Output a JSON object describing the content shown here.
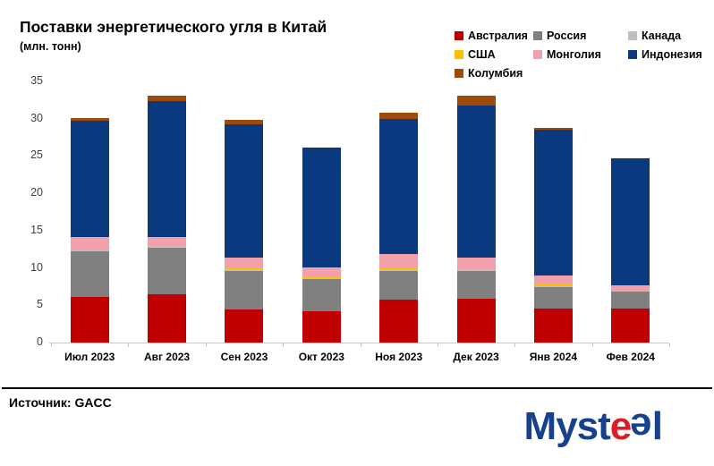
{
  "header": {
    "title": "Поставки энергетического угля в Китай",
    "subtitle": "(млн. тонн)"
  },
  "footer": {
    "source": "Источник: GACC",
    "logo": {
      "prefix": "Myst",
      "e1": "e",
      "e2": "e",
      "suffix": "l"
    }
  },
  "chart_data": {
    "type": "bar",
    "stacked": true,
    "title": "Поставки энергетического угля в Китай",
    "unit_label": "млн. тонн",
    "categories": [
      "Июл 2023",
      "Авг 2023",
      "Сен 2023",
      "Окт 2023",
      "Ноя 2023",
      "Дек 2023",
      "Янв 2024",
      "Фев 2024"
    ],
    "series": [
      {
        "name": "Австралия",
        "color": "#c00000",
        "values": [
          6.1,
          6.5,
          4.4,
          4.2,
          5.8,
          5.9,
          4.5,
          4.5
        ]
      },
      {
        "name": "Россия",
        "color": "#808080",
        "values": [
          6.2,
          6.2,
          5.2,
          4.3,
          3.8,
          3.7,
          2.9,
          2.3
        ]
      },
      {
        "name": "Канада",
        "color": "#bfbfbf",
        "values": [
          0.1,
          0.1,
          0.1,
          0.1,
          0.1,
          0.1,
          0.1,
          0.1
        ]
      },
      {
        "name": "США",
        "color": "#ffc000",
        "values": [
          0.1,
          0.1,
          0.3,
          0.2,
          0.4,
          0.1,
          0.3,
          0.1
        ]
      },
      {
        "name": "Монголия",
        "color": "#f2a0ac",
        "values": [
          1.6,
          1.3,
          1.4,
          1.3,
          1.8,
          1.6,
          1.2,
          0.7
        ]
      },
      {
        "name": "Индонезия",
        "color": "#0b3980",
        "values": [
          15.6,
          18.2,
          17.8,
          16.0,
          18.1,
          20.4,
          19.5,
          17.0
        ]
      },
      {
        "name": "Колумбия",
        "color": "#9e4a0b",
        "values": [
          0.4,
          0.7,
          0.6,
          0.0,
          0.8,
          1.3,
          0.3,
          0.0
        ]
      }
    ],
    "totals": [
      30.1,
      33.1,
      29.8,
      26.1,
      30.8,
      33.1,
      28.8,
      24.7
    ],
    "ylim": [
      0,
      35
    ],
    "yticks": [
      0,
      5,
      10,
      15,
      20,
      25,
      30,
      35
    ],
    "legend_position": "top-right",
    "grid": false
  }
}
